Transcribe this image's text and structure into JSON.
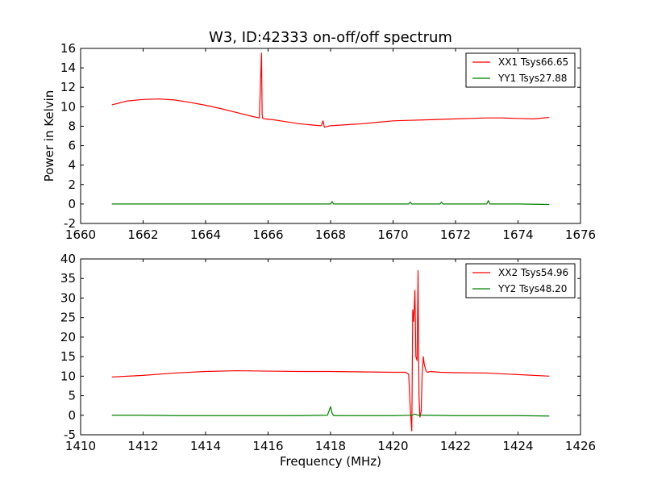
{
  "chart_data": [
    {
      "type": "line",
      "title": "W3, ID:42333 on-off/off spectrum",
      "xlabel": "",
      "ylabel": "Power in Kelvin",
      "xlim": [
        1660,
        1676
      ],
      "ylim": [
        -2,
        16
      ],
      "xticks": [
        1660,
        1662,
        1664,
        1666,
        1668,
        1670,
        1672,
        1674,
        1676
      ],
      "yticks": [
        -2,
        0,
        2,
        4,
        6,
        8,
        10,
        12,
        14,
        16
      ],
      "legend_loc": "top-right",
      "series": [
        {
          "name": "XX1 Tsys66.65",
          "color": "#ff0000",
          "x": [
            1661.0,
            1661.5,
            1662.0,
            1662.5,
            1663.0,
            1663.5,
            1664.0,
            1664.5,
            1665.0,
            1665.5,
            1665.72,
            1665.79,
            1665.81,
            1665.83,
            1665.9,
            1666.2,
            1666.5,
            1667.0,
            1667.5,
            1667.7,
            1667.76,
            1667.8,
            1668.0,
            1668.5,
            1669.0,
            1669.5,
            1670.0,
            1670.5,
            1671.0,
            1671.5,
            1672.0,
            1672.5,
            1673.0,
            1673.5,
            1674.0,
            1674.5,
            1675.0
          ],
          "y": [
            10.2,
            10.6,
            10.75,
            10.8,
            10.7,
            10.45,
            10.15,
            9.8,
            9.4,
            9.0,
            8.85,
            15.5,
            9.2,
            8.8,
            8.75,
            8.65,
            8.5,
            8.25,
            8.1,
            8.05,
            8.55,
            7.9,
            8.05,
            8.15,
            8.25,
            8.4,
            8.55,
            8.6,
            8.65,
            8.7,
            8.75,
            8.8,
            8.85,
            8.85,
            8.8,
            8.75,
            8.9
          ]
        },
        {
          "name": "YY1 Tsys27.88",
          "color": "#008000",
          "x": [
            1661.0,
            1662.0,
            1663.0,
            1664.0,
            1665.0,
            1666.0,
            1667.0,
            1668.0,
            1668.05,
            1668.1,
            1669.0,
            1670.0,
            1670.5,
            1670.55,
            1670.6,
            1671.0,
            1671.5,
            1671.55,
            1671.6,
            1672.0,
            1673.0,
            1673.05,
            1673.1,
            1674.0,
            1675.0
          ],
          "y": [
            0.0,
            0.0,
            0.0,
            0.0,
            0.0,
            0.0,
            0.0,
            0.0,
            0.25,
            0.0,
            0.0,
            0.0,
            0.0,
            0.2,
            0.0,
            0.0,
            0.0,
            0.2,
            0.0,
            0.0,
            0.0,
            0.35,
            0.0,
            0.0,
            -0.05
          ]
        }
      ]
    },
    {
      "type": "line",
      "title": "",
      "xlabel": "Frequency (MHz)",
      "ylabel": "",
      "xlim": [
        1410,
        1426
      ],
      "ylim": [
        -5,
        40
      ],
      "xticks": [
        1410,
        1412,
        1414,
        1416,
        1418,
        1420,
        1422,
        1424,
        1426
      ],
      "yticks": [
        -5,
        0,
        5,
        10,
        15,
        20,
        25,
        30,
        35,
        40
      ],
      "legend_loc": "top-right",
      "series": [
        {
          "name": "XX2 Tsys54.96",
          "color": "#ff0000",
          "x": [
            1411.0,
            1412.0,
            1413.0,
            1414.0,
            1415.0,
            1416.0,
            1417.0,
            1418.0,
            1419.0,
            1420.0,
            1420.4,
            1420.5,
            1420.55,
            1420.6,
            1420.63,
            1420.66,
            1420.7,
            1420.73,
            1420.77,
            1420.8,
            1420.83,
            1420.86,
            1420.9,
            1420.93,
            1420.97,
            1421.0,
            1421.05,
            1421.1,
            1421.2,
            1421.5,
            1422.0,
            1423.0,
            1424.0,
            1425.0
          ],
          "y": [
            9.8,
            10.2,
            10.8,
            11.2,
            11.4,
            11.3,
            11.2,
            11.2,
            11.1,
            11.0,
            11.0,
            10.5,
            2.0,
            -4.0,
            27.0,
            24.0,
            32.0,
            15.0,
            14.0,
            37.0,
            5.0,
            -0.5,
            1.0,
            10.0,
            15.0,
            13.0,
            11.5,
            11.0,
            11.2,
            11.0,
            10.9,
            10.8,
            10.4,
            10.0
          ]
        },
        {
          "name": "YY2 Tsys48.20",
          "color": "#008000",
          "x": [
            1411.0,
            1412.0,
            1413.0,
            1414.0,
            1415.0,
            1416.0,
            1417.0,
            1417.9,
            1418.0,
            1418.05,
            1418.1,
            1419.0,
            1420.0,
            1420.6,
            1420.7,
            1420.8,
            1421.0,
            1422.0,
            1423.0,
            1424.0,
            1425.0
          ],
          "y": [
            0.0,
            0.0,
            -0.1,
            -0.1,
            -0.1,
            -0.1,
            -0.1,
            0.0,
            2.2,
            0.5,
            -0.1,
            -0.1,
            -0.1,
            0.0,
            0.3,
            0.0,
            0.0,
            -0.1,
            -0.1,
            -0.1,
            -0.2
          ]
        }
      ]
    }
  ]
}
